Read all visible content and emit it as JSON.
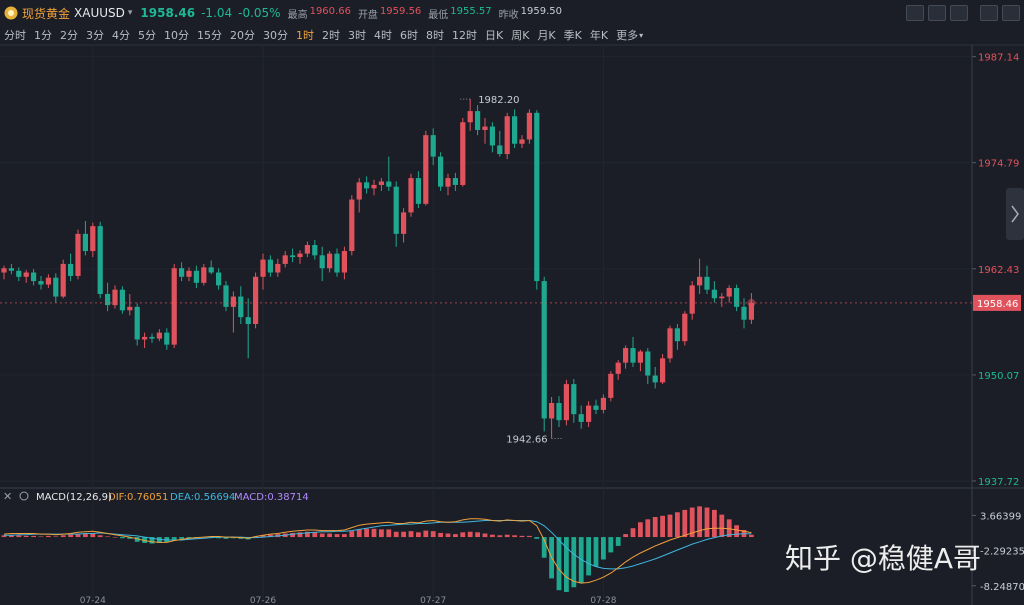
{
  "header": {
    "name": "现货黄金",
    "symbol": "XAUUSD",
    "change": "-1.04",
    "change_pct": "-0.05%",
    "stats": [
      {
        "label": "最高",
        "value": "1960.66"
      },
      {
        "label": "开盘",
        "value": "1959.56"
      },
      {
        "label": "最低",
        "value": "1955.57"
      },
      {
        "label": "昨收",
        "value": "1959.50"
      }
    ],
    "tabs": [
      "分时",
      "1分",
      "2分",
      "3分",
      "4分",
      "5分",
      "10分",
      "15分",
      "20分",
      "30分",
      "1时",
      "2时",
      "3时",
      "4时",
      "6时",
      "8时",
      "12时",
      "日K",
      "周K",
      "月K",
      "季K",
      "年K",
      "更多"
    ],
    "active_tab": "1时"
  },
  "watermark": "知乎 @稳健A哥",
  "chart_data": {
    "type": "candlestick",
    "categories": [
      null,
      null,
      null,
      null,
      null,
      null,
      null,
      null,
      null,
      null,
      null,
      null,
      "07-24",
      null,
      null,
      null,
      null,
      null,
      null,
      null,
      null,
      null,
      null,
      null,
      null,
      null,
      null,
      null,
      null,
      null,
      null,
      null,
      null,
      null,
      null,
      "07-26",
      null,
      null,
      null,
      null,
      null,
      null,
      null,
      null,
      null,
      null,
      null,
      null,
      null,
      null,
      null,
      null,
      null,
      null,
      null,
      null,
      null,
      null,
      "07-27",
      null,
      null,
      null,
      null,
      null,
      null,
      null,
      null,
      null,
      null,
      null,
      null,
      null,
      null,
      null,
      null,
      null,
      null,
      null,
      null,
      null,
      null,
      "07-28",
      null,
      null,
      null,
      null,
      null,
      null,
      null,
      null,
      null,
      null,
      null,
      null,
      null,
      null,
      null,
      null,
      null,
      null,
      null,
      null
    ],
    "open": [
      1962.0,
      1962.5,
      1962.2,
      1961.5,
      1962.0,
      1961.0,
      1960.6,
      1961.4,
      1959.2,
      1963.0,
      1961.6,
      1966.5,
      1964.5,
      1967.4,
      1959.5,
      1958.2,
      1960.0,
      1957.6,
      1958.0,
      1954.2,
      1954.5,
      1954.3,
      1955.0,
      1953.6,
      1962.5,
      1961.5,
      1962.2,
      1960.8,
      1962.6,
      1962.0,
      1960.5,
      1958.0,
      1959.2,
      1956.8,
      1956.0,
      1961.5,
      1963.5,
      1962.0,
      1963.0,
      1964.0,
      1963.8,
      1964.2,
      1965.2,
      1964.0,
      1962.5,
      1964.2,
      1962.0,
      1964.5,
      1970.5,
      1972.5,
      1971.8,
      1972.2,
      1972.6,
      1972.0,
      1966.5,
      1969.0,
      1973.0,
      1970.0,
      1978.0,
      1975.5,
      1972.0,
      1973.0,
      1972.2,
      1979.5,
      1980.8,
      1978.6,
      1979.0,
      1976.8,
      1975.8,
      1980.2,
      1977.0,
      1977.5,
      1980.6,
      1961.0,
      1945.0,
      1946.8,
      1944.8,
      1949.0,
      1945.5,
      1944.6,
      1946.5,
      1946.0,
      1947.4,
      1950.2,
      1951.5,
      1953.2,
      1951.5,
      1952.8,
      1950.0,
      1949.2,
      1952.0,
      1955.5,
      1954.0,
      1957.2,
      1960.5,
      1961.5,
      1960.0,
      1959.0,
      1959.2,
      1960.2,
      1958.0,
      1956.5
    ],
    "high": [
      1962.8,
      1963.0,
      1962.6,
      1962.3,
      1962.4,
      1961.6,
      1961.8,
      1961.9,
      1963.5,
      1964.2,
      1967.0,
      1968.0,
      1967.8,
      1967.9,
      1960.8,
      1960.5,
      1960.4,
      1959.5,
      1958.4,
      1955.0,
      1954.9,
      1955.4,
      1955.5,
      1963.0,
      1963.2,
      1962.6,
      1962.8,
      1963.0,
      1963.4,
      1962.5,
      1961.0,
      1959.8,
      1960.4,
      1959.0,
      1962.0,
      1964.2,
      1964.0,
      1963.6,
      1964.5,
      1964.8,
      1964.6,
      1965.6,
      1965.8,
      1965.0,
      1964.5,
      1964.8,
      1965.0,
      1971.0,
      1973.0,
      1973.2,
      1972.8,
      1973.0,
      1975.5,
      1972.6,
      1969.5,
      1973.5,
      1973.8,
      1978.5,
      1978.8,
      1976.0,
      1973.5,
      1973.6,
      1980.0,
      1982.2,
      1981.5,
      1980.0,
      1979.5,
      1978.5,
      1980.6,
      1981.0,
      1978.0,
      1981.0,
      1980.9,
      1961.5,
      1947.5,
      1947.6,
      1949.5,
      1949.6,
      1946.5,
      1947.0,
      1947.2,
      1947.8,
      1950.5,
      1951.8,
      1953.5,
      1954.5,
      1953.0,
      1953.2,
      1951.0,
      1952.5,
      1955.8,
      1956.0,
      1957.5,
      1961.0,
      1963.6,
      1962.8,
      1961.0,
      1959.6,
      1960.5,
      1960.6,
      1959.0,
      1959.6
    ],
    "low": [
      1961.2,
      1961.8,
      1961.0,
      1960.8,
      1960.5,
      1960.0,
      1960.2,
      1958.5,
      1959.0,
      1961.0,
      1961.2,
      1964.0,
      1963.8,
      1959.0,
      1957.5,
      1957.8,
      1957.2,
      1957.0,
      1953.5,
      1953.2,
      1953.8,
      1954.0,
      1953.0,
      1953.2,
      1961.0,
      1961.0,
      1960.2,
      1960.5,
      1961.8,
      1960.0,
      1957.5,
      1955.0,
      1956.0,
      1952.0,
      1955.5,
      1960.0,
      1961.5,
      1961.5,
      1962.6,
      1963.2,
      1963.0,
      1963.8,
      1963.5,
      1961.0,
      1962.0,
      1961.5,
      1961.2,
      1964.0,
      1969.0,
      1971.2,
      1971.0,
      1971.5,
      1971.5,
      1965.0,
      1965.5,
      1968.5,
      1969.5,
      1969.8,
      1974.5,
      1971.5,
      1971.0,
      1971.5,
      1972.0,
      1978.5,
      1978.0,
      1977.0,
      1976.0,
      1975.5,
      1975.2,
      1976.5,
      1976.5,
      1977.0,
      1960.0,
      1943.5,
      1942.66,
      1944.0,
      1944.2,
      1944.5,
      1943.8,
      1944.0,
      1945.5,
      1945.6,
      1947.0,
      1949.5,
      1950.8,
      1951.0,
      1950.5,
      1949.0,
      1948.5,
      1949.0,
      1951.5,
      1953.0,
      1953.5,
      1956.5,
      1959.5,
      1959.5,
      1958.5,
      1958.0,
      1958.5,
      1957.5,
      1955.5,
      1956.0
    ],
    "close": [
      1962.5,
      1962.2,
      1961.5,
      1962.0,
      1961.0,
      1960.6,
      1961.4,
      1959.2,
      1963.0,
      1961.6,
      1966.5,
      1964.5,
      1967.4,
      1959.5,
      1958.2,
      1960.0,
      1957.6,
      1958.0,
      1954.2,
      1954.5,
      1954.3,
      1955.0,
      1953.6,
      1962.5,
      1961.5,
      1962.2,
      1960.8,
      1962.6,
      1962.0,
      1960.5,
      1958.0,
      1959.2,
      1956.8,
      1956.0,
      1961.5,
      1963.5,
      1962.0,
      1963.0,
      1964.0,
      1963.8,
      1964.2,
      1965.2,
      1964.0,
      1962.5,
      1964.2,
      1962.0,
      1964.5,
      1970.5,
      1972.5,
      1971.8,
      1972.2,
      1972.6,
      1972.0,
      1966.5,
      1969.0,
      1973.0,
      1970.0,
      1978.0,
      1975.5,
      1972.0,
      1973.0,
      1972.2,
      1979.5,
      1980.8,
      1978.6,
      1979.0,
      1976.8,
      1975.8,
      1980.2,
      1977.0,
      1977.5,
      1980.6,
      1961.0,
      1945.0,
      1946.8,
      1944.8,
      1949.0,
      1945.5,
      1944.6,
      1946.5,
      1946.0,
      1947.4,
      1950.2,
      1951.5,
      1953.2,
      1951.5,
      1952.8,
      1950.0,
      1949.2,
      1952.0,
      1955.5,
      1954.0,
      1957.2,
      1960.5,
      1961.5,
      1960.0,
      1959.0,
      1959.2,
      1960.2,
      1958.0,
      1956.5,
      1958.46
    ],
    "up_color": "#e0535d",
    "down_color": "#1fa88f",
    "ylim": [
      1936.9,
      1988.5
    ],
    "yticks": [
      1937.72,
      1950.07,
      1962.43,
      1974.79,
      1987.14
    ],
    "annotations": {
      "high_label": "1982.20",
      "low_label": "1942.66"
    },
    "macd": {
      "type": "macd",
      "title": "MACD(12,26,9)",
      "dif_label": "DIF:0.76051",
      "dea_label": "DEA:0.56694",
      "macd_label": "MACD:0.38714",
      "ylim": [
        -10.66,
        7.97
      ],
      "yticks": [
        {
          "value": -8.2487,
          "label": "-8.24870"
        },
        -2.29235,
        3.66399
      ],
      "dif_color": "#f0a03c",
      "dea_color": "#3fb6e0",
      "hist": [
        0.3,
        0.4,
        0.3,
        0.2,
        0.2,
        0.1,
        0.2,
        0.1,
        0.3,
        0.4,
        0.6,
        0.6,
        0.7,
        0.3,
        0.1,
        0.0,
        -0.2,
        -0.3,
        -0.8,
        -1.0,
        -1.1,
        -1.0,
        -0.9,
        -0.4,
        -0.3,
        -0.2,
        -0.2,
        -0.1,
        -0.1,
        -0.2,
        -0.3,
        -0.2,
        -0.3,
        -0.4,
        0.1,
        0.3,
        0.4,
        0.5,
        0.6,
        0.7,
        0.8,
        0.9,
        0.8,
        0.6,
        0.6,
        0.5,
        0.5,
        1.0,
        1.3,
        1.4,
        1.4,
        1.3,
        1.3,
        0.9,
        0.9,
        1.0,
        0.8,
        1.1,
        1.0,
        0.7,
        0.6,
        0.5,
        0.8,
        0.9,
        0.8,
        0.6,
        0.4,
        0.3,
        0.4,
        0.3,
        0.2,
        0.2,
        -0.3,
        -3.5,
        -7.0,
        -9.0,
        -9.3,
        -8.5,
        -7.8,
        -6.5,
        -5.0,
        -3.8,
        -2.6,
        -1.5,
        0.5,
        1.5,
        2.5,
        3.0,
        3.4,
        3.6,
        3.8,
        4.2,
        4.6,
        5.0,
        5.2,
        5.0,
        4.6,
        3.8,
        3.0,
        2.0,
        1.2,
        0.39
      ],
      "dif": [
        0.5,
        0.6,
        0.6,
        0.6,
        0.6,
        0.5,
        0.5,
        0.4,
        0.5,
        0.6,
        0.8,
        0.9,
        1.0,
        0.8,
        0.6,
        0.4,
        0.2,
        0.0,
        -0.3,
        -0.6,
        -0.8,
        -0.9,
        -0.9,
        -0.6,
        -0.4,
        -0.2,
        -0.1,
        0.0,
        0.1,
        0.1,
        0.0,
        0.0,
        -0.1,
        -0.2,
        0.1,
        0.3,
        0.5,
        0.6,
        0.8,
        1.0,
        1.1,
        1.2,
        1.2,
        1.1,
        1.1,
        1.1,
        1.2,
        1.6,
        2.0,
        2.2,
        2.3,
        2.4,
        2.5,
        2.3,
        2.3,
        2.5,
        2.4,
        2.7,
        2.8,
        2.6,
        2.5,
        2.6,
        2.9,
        3.1,
        3.1,
        3.0,
        2.8,
        2.7,
        2.9,
        2.8,
        2.7,
        2.8,
        1.9,
        -0.5,
        -3.5,
        -5.5,
        -6.8,
        -7.5,
        -7.8,
        -7.7,
        -7.3,
        -6.8,
        -6.1,
        -5.2,
        -4.2,
        -3.4,
        -2.7,
        -2.1,
        -1.5,
        -1.0,
        -0.5,
        -0.1,
        0.3,
        0.7,
        1.1,
        1.4,
        1.5,
        1.5,
        1.4,
        1.2,
        1.0,
        0.76051
      ],
      "dea": [
        0.3,
        0.3,
        0.4,
        0.4,
        0.5,
        0.5,
        0.5,
        0.5,
        0.5,
        0.5,
        0.5,
        0.6,
        0.6,
        0.7,
        0.6,
        0.5,
        0.4,
        0.3,
        0.2,
        0.0,
        -0.2,
        -0.4,
        -0.5,
        -0.5,
        -0.5,
        -0.4,
        -0.3,
        -0.2,
        -0.1,
        0.0,
        0.0,
        0.0,
        0.0,
        -0.1,
        -0.1,
        0.0,
        0.1,
        0.2,
        0.3,
        0.5,
        0.6,
        0.7,
        0.8,
        0.9,
        0.9,
        1.0,
        1.0,
        1.1,
        1.3,
        1.5,
        1.7,
        1.9,
        2.0,
        2.1,
        2.2,
        2.2,
        2.3,
        2.3,
        2.4,
        2.5,
        2.5,
        2.5,
        2.5,
        2.6,
        2.7,
        2.8,
        2.8,
        2.8,
        2.8,
        2.8,
        2.8,
        2.8,
        2.6,
        1.9,
        0.8,
        -0.5,
        -1.8,
        -2.9,
        -3.8,
        -4.5,
        -5.0,
        -5.3,
        -5.4,
        -5.4,
        -5.2,
        -4.9,
        -4.5,
        -4.1,
        -3.7,
        -3.2,
        -2.7,
        -2.2,
        -1.7,
        -1.2,
        -0.8,
        -0.4,
        -0.1,
        0.2,
        0.4,
        0.5,
        0.55,
        0.56694
      ]
    }
  }
}
